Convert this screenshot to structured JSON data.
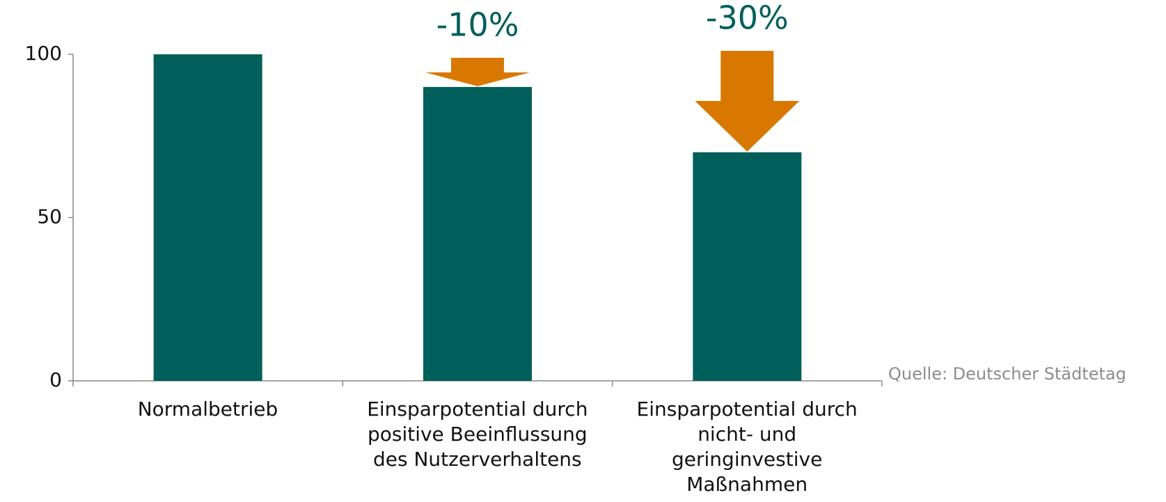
{
  "chart_data": {
    "type": "bar",
    "categories": [
      "Normalbetrieb",
      "Einsparpotential durch\npositive Beeinflussung\ndes Nutzerverhaltens",
      "Einsparpotential durch\nnicht- und\ngeringinvestive\nMaßnahmen"
    ],
    "values": [
      100,
      90,
      70
    ],
    "color": "#005f5a",
    "ylim": [
      0,
      100
    ],
    "yticks": [
      0,
      50,
      100
    ],
    "annotations": [
      "-10%",
      "-30%"
    ],
    "annotation_color": "#d97800",
    "source": "Quelle: Deutscher Städtetag"
  }
}
